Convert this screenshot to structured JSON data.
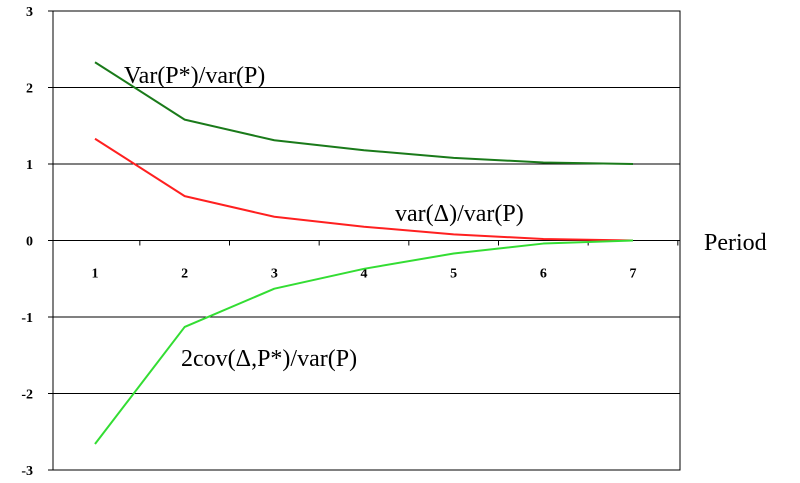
{
  "chart_data": {
    "type": "line",
    "x": [
      1,
      2,
      3,
      4,
      5,
      6,
      7
    ],
    "xlabel": "Period",
    "ylabel": "",
    "ylim": [
      -3,
      3
    ],
    "yticks": [
      "3",
      "2",
      "1",
      "0",
      "-1",
      "-2",
      "-3"
    ],
    "xticks": [
      "1",
      "2",
      "3",
      "4",
      "5",
      "6",
      "7"
    ],
    "grid": true,
    "series": [
      {
        "name": "Var(P*)/var(P)",
        "color": "#1a7a1a",
        "values": [
          2.33,
          1.58,
          1.31,
          1.18,
          1.08,
          1.02,
          1.0
        ]
      },
      {
        "name": "var(Δ)/var(P)",
        "color": "#ff2020",
        "values": [
          1.33,
          0.58,
          0.31,
          0.18,
          0.08,
          0.02,
          0.0
        ]
      },
      {
        "name": "2cov(Δ,P*)/var(P)",
        "color": "#33dd33",
        "values": [
          -2.66,
          -1.13,
          -0.63,
          -0.37,
          -0.17,
          -0.04,
          0.0
        ]
      }
    ]
  }
}
